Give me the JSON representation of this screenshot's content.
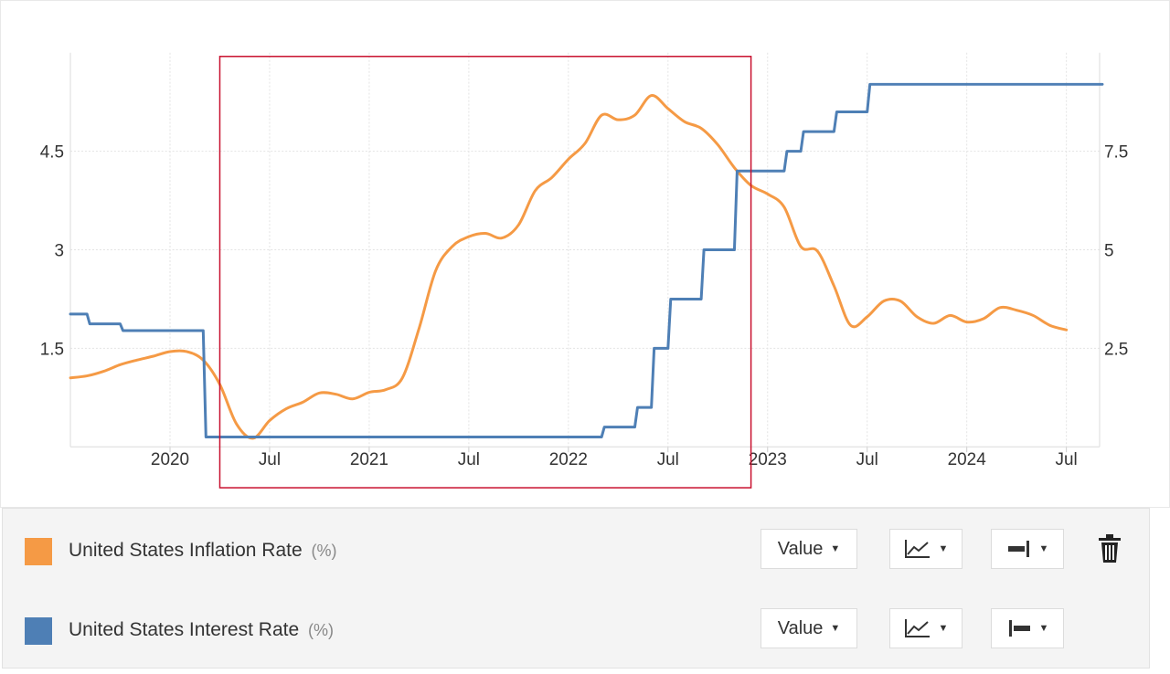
{
  "chart_data": {
    "type": "line",
    "x_range": [
      "2019-07",
      "2024-09"
    ],
    "x_ticks": [
      {
        "date": "2020-01",
        "label": "2020"
      },
      {
        "date": "2020-07",
        "label": "Jul"
      },
      {
        "date": "2021-01",
        "label": "2021"
      },
      {
        "date": "2021-07",
        "label": "Jul"
      },
      {
        "date": "2022-01",
        "label": "2022"
      },
      {
        "date": "2022-07",
        "label": "Jul"
      },
      {
        "date": "2023-01",
        "label": "2023"
      },
      {
        "date": "2023-07",
        "label": "Jul"
      },
      {
        "date": "2024-01",
        "label": "2024"
      },
      {
        "date": "2024-07",
        "label": "Jul"
      }
    ],
    "left_axis": {
      "ticks": [
        1.5,
        3,
        4.5
      ],
      "tick_labels": [
        "1.5",
        "3",
        "4.5"
      ],
      "ylim": [
        0,
        6
      ]
    },
    "right_axis": {
      "ticks": [
        2.5,
        5,
        7.5
      ],
      "tick_labels": [
        "2.5",
        "5",
        "7.5"
      ],
      "ylim": [
        0,
        10
      ]
    },
    "grid": true,
    "highlight_box": {
      "from": "2020-04",
      "to": "2022-12",
      "color": "#c8102e"
    },
    "series": [
      {
        "name": "United States Inflation Rate",
        "unit": "(%)",
        "axis": "left",
        "color": "#f59a45",
        "points": [
          [
            "2019-07",
            1.05
          ],
          [
            "2019-08",
            1.08
          ],
          [
            "2019-09",
            1.15
          ],
          [
            "2019-10",
            1.25
          ],
          [
            "2019-11",
            1.32
          ],
          [
            "2019-12",
            1.38
          ],
          [
            "2020-01",
            1.45
          ],
          [
            "2020-02",
            1.45
          ],
          [
            "2020-03",
            1.32
          ],
          [
            "2020-04",
            0.95
          ],
          [
            "2020-05",
            0.35
          ],
          [
            "2020-06",
            0.13
          ],
          [
            "2020-07",
            0.4
          ],
          [
            "2020-08",
            0.58
          ],
          [
            "2020-09",
            0.68
          ],
          [
            "2020-10",
            0.82
          ],
          [
            "2020-11",
            0.8
          ],
          [
            "2020-12",
            0.73
          ],
          [
            "2021-01",
            0.83
          ],
          [
            "2021-02",
            0.87
          ],
          [
            "2021-03",
            1.05
          ],
          [
            "2021-04",
            1.8
          ],
          [
            "2021-05",
            2.68
          ],
          [
            "2021-06",
            3.05
          ],
          [
            "2021-07",
            3.2
          ],
          [
            "2021-08",
            3.25
          ],
          [
            "2021-09",
            3.18
          ],
          [
            "2021-10",
            3.38
          ],
          [
            "2021-11",
            3.9
          ],
          [
            "2021-12",
            4.1
          ],
          [
            "2022-01",
            4.38
          ],
          [
            "2022-02",
            4.62
          ],
          [
            "2022-03",
            5.05
          ],
          [
            "2022-04",
            4.98
          ],
          [
            "2022-05",
            5.05
          ],
          [
            "2022-06",
            5.35
          ],
          [
            "2022-07",
            5.15
          ],
          [
            "2022-08",
            4.95
          ],
          [
            "2022-09",
            4.85
          ],
          [
            "2022-10",
            4.6
          ],
          [
            "2022-11",
            4.25
          ],
          [
            "2022-12",
            3.98
          ],
          [
            "2023-01",
            3.85
          ],
          [
            "2023-02",
            3.65
          ],
          [
            "2023-03",
            3.05
          ],
          [
            "2023-04",
            2.98
          ],
          [
            "2023-05",
            2.45
          ],
          [
            "2023-06",
            1.85
          ],
          [
            "2023-07",
            1.98
          ],
          [
            "2023-08",
            2.22
          ],
          [
            "2023-09",
            2.22
          ],
          [
            "2023-10",
            1.98
          ],
          [
            "2023-11",
            1.88
          ],
          [
            "2023-12",
            2.0
          ],
          [
            "2024-01",
            1.9
          ],
          [
            "2024-02",
            1.95
          ],
          [
            "2024-03",
            2.12
          ],
          [
            "2024-04",
            2.08
          ],
          [
            "2024-05",
            2.0
          ],
          [
            "2024-06",
            1.85
          ],
          [
            "2024-07",
            1.78
          ]
        ]
      },
      {
        "name": "United States Interest Rate",
        "unit": "(%)",
        "axis": "right",
        "color": "#4e7fb5",
        "step": true,
        "points": [
          [
            "2019-07",
            3.37
          ],
          [
            "2019-08",
            3.12
          ],
          [
            "2019-10",
            2.95
          ],
          [
            "2020-03",
            0.25
          ],
          [
            "2022-03",
            0.5
          ],
          [
            "2022-05",
            1.0
          ],
          [
            "2022-06",
            2.5
          ],
          [
            "2022-07",
            3.75
          ],
          [
            "2022-09",
            5.0
          ],
          [
            "2022-11",
            7.0
          ],
          [
            "2023-02",
            7.5
          ],
          [
            "2023-03",
            8.0
          ],
          [
            "2023-05",
            8.5
          ],
          [
            "2023-07",
            9.2
          ],
          [
            "2024-09",
            9.2
          ]
        ]
      }
    ]
  },
  "legend": {
    "items": [
      {
        "label": "United States Inflation Rate",
        "unit": "(%)",
        "color": "#f59a45",
        "value_label": "Value"
      },
      {
        "label": "United States Interest Rate",
        "unit": "(%)",
        "color": "#4e7fb5",
        "value_label": "Value"
      }
    ]
  }
}
